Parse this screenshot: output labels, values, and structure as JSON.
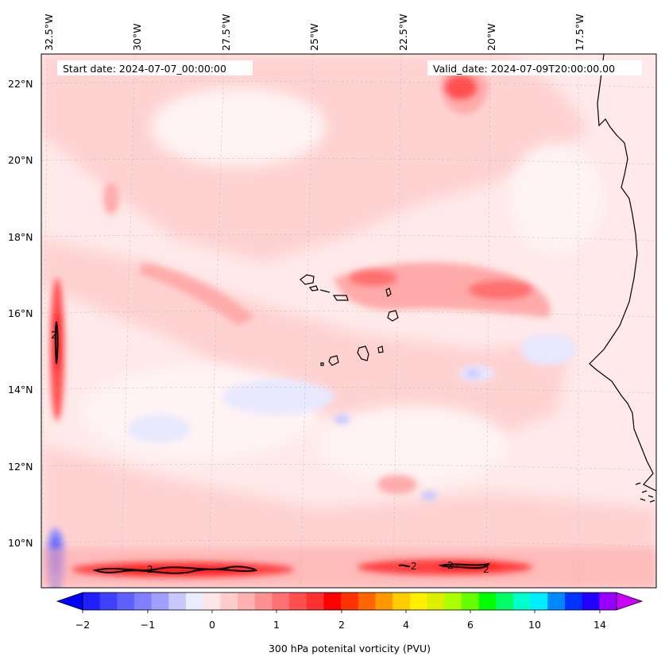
{
  "header": {
    "start_date": "Start date: 2024-07-07_00:00:00",
    "valid_date": "Valid_date: 2024-07-09T20:00:00.00"
  },
  "map": {
    "lon_labels": [
      "32.5°W",
      "30°W",
      "27.5°W",
      "25°W",
      "22.5°W",
      "20°W",
      "17.5°W"
    ],
    "lat_labels": [
      "22°N",
      "20°N",
      "18°N",
      "16°N",
      "14°N",
      "12°N",
      "10°N"
    ],
    "contour_label": "2",
    "gridlines": true
  },
  "colorbar": {
    "title": "300 hPa potenital vorticity (PVU)",
    "tick_labels": [
      "−2",
      "−1",
      "0",
      "1",
      "2",
      "4",
      "6",
      "10",
      "14"
    ],
    "colors": [
      "#0000ff",
      "#2020ff",
      "#4040ff",
      "#6060ff",
      "#8080ff",
      "#a0a0ff",
      "#c8c8ff",
      "#ececff",
      "#ffe6e6",
      "#ffcccc",
      "#ffb0b0",
      "#ff9090",
      "#ff7070",
      "#ff5050",
      "#ff3030",
      "#ff0000",
      "#ff3300",
      "#ff6600",
      "#ff9900",
      "#ffcc00",
      "#ffee00",
      "#ddee00",
      "#aaff00",
      "#66ff00",
      "#00ff00",
      "#00ff66",
      "#00ffcc",
      "#00eeff",
      "#0088ff",
      "#0033ff",
      "#2200ff",
      "#9900ff",
      "#cc00ff"
    ]
  }
}
